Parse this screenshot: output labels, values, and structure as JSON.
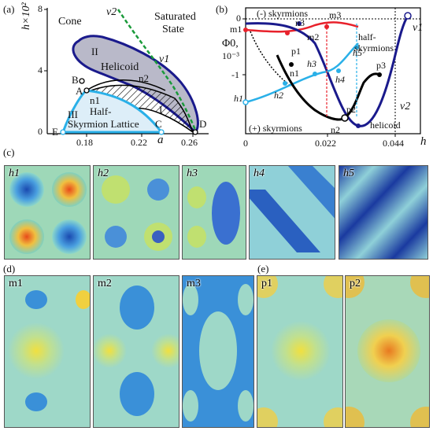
{
  "panel_a": {
    "label": "(a)",
    "y_axis_label": "h×10²",
    "x_axis_label": "a",
    "y_ticks": [
      "0",
      "4",
      "8"
    ],
    "x_ticks": [
      "0.18",
      "0.22",
      "0.26"
    ],
    "regions": {
      "cone": "Cone",
      "saturated": "Saturated",
      "saturated2": "State",
      "region_II": "II",
      "helicoid": "Helicoid",
      "region_I": "I",
      "region_III": "III",
      "half": "Half-",
      "skyrmion_lattice": "Skyrmion Lattice"
    },
    "curves": {
      "nu1": "ν1",
      "nu2": "ν2",
      "n1": "n1",
      "n2": "n2"
    },
    "points": {
      "A": "A",
      "B": "B",
      "C": "C",
      "D": "D",
      "E": "E"
    },
    "colors": {
      "green_dash": "#1a9a3a",
      "cyan": "#2ab0e8",
      "dark_blue": "#1a1a8c",
      "grey_fill": "#b9b9c9"
    }
  },
  "panel_b": {
    "label": "(b)",
    "y_axis_label": "Φ0,",
    "y_axis_unit": "10⁻³",
    "x_axis_label": "h",
    "y_ticks": [
      "0",
      "-1"
    ],
    "x_ticks": [
      "0",
      "0.022",
      "0.044"
    ],
    "annotations": {
      "neg_sky": "(-) skyrmions",
      "pos_sky": "(+) skyrmions",
      "half1": "half-",
      "half2": "skyrmions",
      "helicoid": "helicoid"
    },
    "points": {
      "m1": "m1",
      "m2": "m2",
      "m3": "m3",
      "n1": "n1",
      "n2": "n2",
      "n3": "n3",
      "p1": "p1",
      "p2": "p2",
      "p3": "p3",
      "h1": "h1",
      "h2": "h2",
      "h3": "h3",
      "h4": "h4",
      "h5": "h5",
      "nu1": "ν1",
      "nu2": "ν2"
    },
    "colors": {
      "red": "#e8212b",
      "blue": "#1a1a8c",
      "cyan": "#2ab0e8",
      "black": "#000000"
    }
  },
  "panel_c": {
    "label": "(c)",
    "tiles": [
      "h1",
      "h2",
      "h3",
      "h4",
      "h5"
    ]
  },
  "panel_d": {
    "label": "(d)",
    "tiles": [
      "m1",
      "m2",
      "m3"
    ]
  },
  "panel_e": {
    "label": "(e)",
    "tiles": [
      "p1",
      "p2"
    ]
  }
}
